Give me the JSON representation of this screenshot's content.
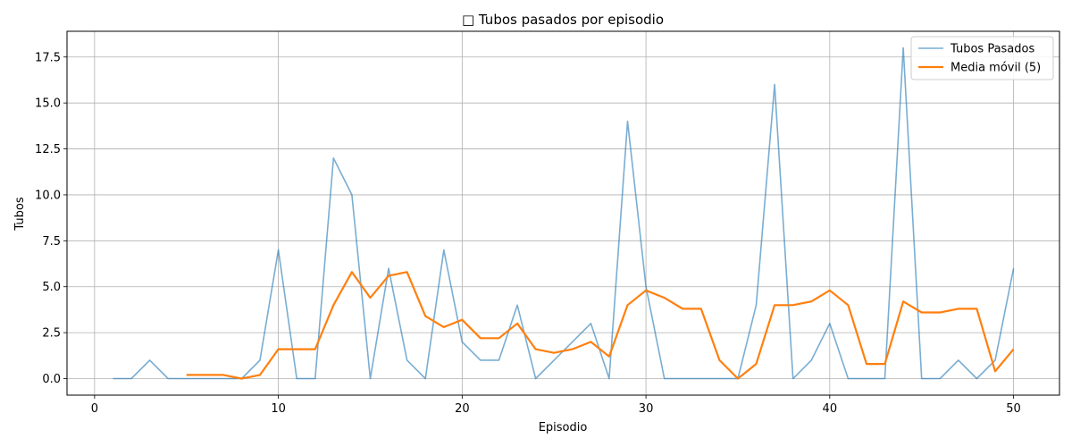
{
  "chart_data": {
    "type": "line",
    "title": "□ Tubos pasados por episodio",
    "xlabel": "Episodio",
    "ylabel": "Tubos",
    "xlim": [
      -1.5,
      52.5
    ],
    "ylim": [
      -0.9,
      18.9
    ],
    "xticks": [
      0,
      10,
      20,
      30,
      40,
      50
    ],
    "xtick_labels": [
      "0",
      "10",
      "20",
      "30",
      "40",
      "50"
    ],
    "yticks": [
      0,
      2.5,
      5,
      7.5,
      10,
      12.5,
      15,
      17.5
    ],
    "ytick_labels": [
      "0.0",
      "2.5",
      "5.0",
      "7.5",
      "10.0",
      "12.5",
      "15.0",
      "17.5"
    ],
    "grid": true,
    "legend_position": "top-right",
    "series": [
      {
        "name": "Tubos Pasados",
        "color": "#1f77b4",
        "x": [
          1,
          2,
          3,
          4,
          5,
          6,
          7,
          8,
          9,
          10,
          11,
          12,
          13,
          14,
          15,
          16,
          17,
          18,
          19,
          20,
          21,
          22,
          23,
          24,
          25,
          26,
          27,
          28,
          29,
          30,
          31,
          32,
          33,
          34,
          35,
          36,
          37,
          38,
          39,
          40,
          41,
          42,
          43,
          44,
          45,
          46,
          47,
          48,
          49,
          50
        ],
        "y": [
          0,
          0,
          1,
          0,
          0,
          0,
          0,
          0,
          1,
          7,
          0,
          0,
          12,
          10,
          0,
          6,
          1,
          0,
          7,
          2,
          1,
          1,
          4,
          0,
          1,
          2,
          3,
          0,
          14,
          5,
          0,
          0,
          0,
          0,
          0,
          4,
          16,
          0,
          1,
          3,
          0,
          0,
          0,
          18,
          0,
          0,
          1,
          0,
          1,
          6
        ]
      },
      {
        "name": "Media móvil (5)",
        "color": "#ff7f0e",
        "x": [
          5,
          6,
          7,
          8,
          9,
          10,
          11,
          12,
          13,
          14,
          15,
          16,
          17,
          18,
          19,
          20,
          21,
          22,
          23,
          24,
          25,
          26,
          27,
          28,
          29,
          30,
          31,
          32,
          33,
          34,
          35,
          36,
          37,
          38,
          39,
          40,
          41,
          42,
          43,
          44,
          45,
          46,
          47,
          48,
          49,
          50
        ],
        "y": [
          0.2,
          0.2,
          0.2,
          0,
          0.2,
          1.6,
          1.6,
          1.6,
          4,
          5.8,
          4.4,
          5.6,
          5.8,
          3.4,
          2.8,
          3.2,
          2.2,
          2.2,
          3,
          1.6,
          1.4,
          1.6,
          2,
          1.2,
          4,
          4.8,
          4.4,
          3.8,
          3.8,
          1,
          0,
          0.8,
          4,
          4,
          4.2,
          4.8,
          4,
          0.8,
          0.8,
          4.2,
          3.6,
          3.6,
          3.8,
          3.8,
          0.4,
          1.6
        ]
      }
    ]
  }
}
